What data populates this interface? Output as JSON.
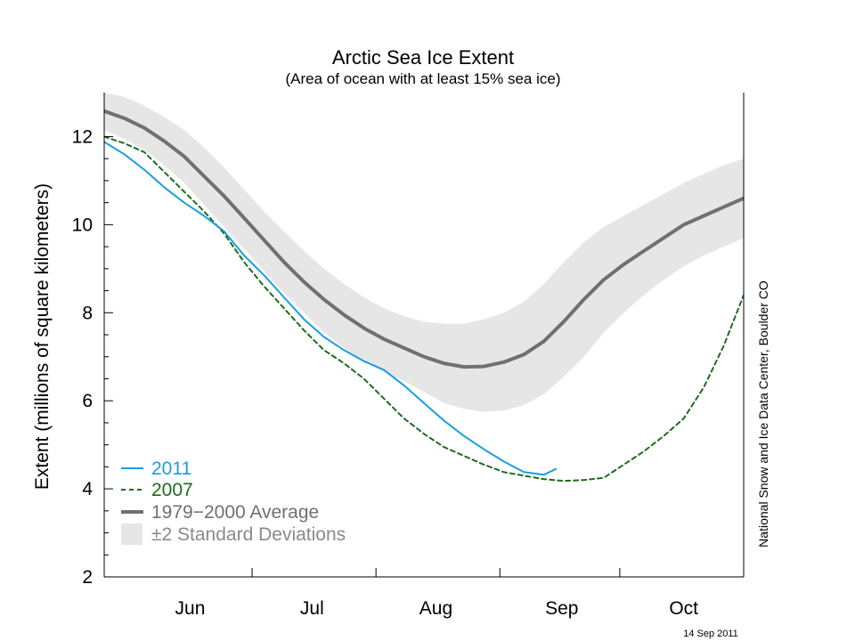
{
  "chart_data": {
    "type": "line",
    "title": "Arctic Sea Ice Extent",
    "subtitle": "(Area of ocean with at least 15% sea ice)",
    "ylabel": "Extent (millions of square kilometers)",
    "xlabel": "",
    "ylim": [
      2,
      13
    ],
    "yticks": [
      "2",
      "4",
      "6",
      "8",
      "10",
      "12"
    ],
    "x_unit": "day-of-year",
    "xlim": [
      145,
      305
    ],
    "month_labels": [
      {
        "label": "Jun",
        "day": 166.5
      },
      {
        "label": "Jul",
        "day": 197
      },
      {
        "label": "Aug",
        "day": 228
      },
      {
        "label": "Sep",
        "day": 259.5
      },
      {
        "label": "Oct",
        "day": 290
      }
    ],
    "month_boundaries": [
      182,
      213,
      244,
      274
    ],
    "grid": false,
    "legend_position": "bottom-left",
    "series": [
      {
        "name": "2011",
        "key": "s2011",
        "color": "#1a9ee0",
        "style": "solid",
        "x": [
          145,
          150,
          155,
          160,
          165,
          170,
          175,
          180,
          185,
          190,
          195,
          200,
          205,
          210,
          215,
          220,
          225,
          230,
          235,
          240,
          245,
          250,
          255,
          258
        ],
        "y": [
          11.88,
          11.6,
          11.25,
          10.85,
          10.5,
          10.2,
          9.85,
          9.3,
          8.85,
          8.35,
          7.85,
          7.45,
          7.15,
          6.9,
          6.7,
          6.35,
          5.95,
          5.55,
          5.2,
          4.9,
          4.62,
          4.38,
          4.32,
          4.45
        ]
      },
      {
        "name": "2007",
        "key": "s2007",
        "color": "#1e6b1e",
        "style": "dashed",
        "x": [
          145,
          150,
          155,
          160,
          165,
          170,
          175,
          180,
          185,
          190,
          195,
          200,
          205,
          210,
          215,
          220,
          225,
          230,
          235,
          240,
          245,
          250,
          255,
          260,
          265,
          270,
          275,
          280,
          285,
          290,
          295,
          300,
          305
        ],
        "y": [
          12.0,
          11.85,
          11.65,
          11.2,
          10.75,
          10.3,
          9.8,
          9.15,
          8.6,
          8.1,
          7.6,
          7.15,
          6.85,
          6.5,
          6.05,
          5.6,
          5.25,
          4.95,
          4.75,
          4.55,
          4.38,
          4.3,
          4.22,
          4.18,
          4.2,
          4.25,
          4.55,
          4.85,
          5.2,
          5.6,
          6.3,
          7.25,
          8.4
        ]
      },
      {
        "name": "1979−2000 Average",
        "key": "avg",
        "color": "#707070",
        "style": "solid-thick",
        "x": [
          145,
          150,
          155,
          160,
          165,
          170,
          175,
          180,
          185,
          190,
          195,
          200,
          205,
          210,
          215,
          220,
          225,
          230,
          235,
          240,
          245,
          250,
          255,
          260,
          265,
          270,
          275,
          280,
          285,
          290,
          295,
          300,
          305
        ],
        "y": [
          12.58,
          12.42,
          12.2,
          11.9,
          11.55,
          11.1,
          10.65,
          10.15,
          9.65,
          9.15,
          8.7,
          8.3,
          7.95,
          7.65,
          7.4,
          7.2,
          7.0,
          6.85,
          6.77,
          6.78,
          6.88,
          7.05,
          7.35,
          7.8,
          8.3,
          8.75,
          9.1,
          9.4,
          9.7,
          10.0,
          10.2,
          10.4,
          10.6
        ]
      }
    ],
    "band": {
      "name": "±2 Standard Deviations",
      "color": "#e6e6e6",
      "x": [
        145,
        150,
        155,
        160,
        165,
        170,
        175,
        180,
        185,
        190,
        195,
        200,
        205,
        210,
        215,
        220,
        225,
        230,
        235,
        240,
        245,
        250,
        255,
        260,
        265,
        270,
        275,
        280,
        285,
        290,
        295,
        300,
        305
      ],
      "upper": [
        13.0,
        12.9,
        12.7,
        12.45,
        12.15,
        11.75,
        11.3,
        10.8,
        10.3,
        9.85,
        9.4,
        9.0,
        8.65,
        8.35,
        8.1,
        7.92,
        7.8,
        7.75,
        7.75,
        7.85,
        8.0,
        8.25,
        8.65,
        9.15,
        9.6,
        9.95,
        10.2,
        10.45,
        10.7,
        10.95,
        11.15,
        11.35,
        11.5
      ],
      "lower": [
        12.15,
        11.95,
        11.7,
        11.35,
        10.95,
        10.45,
        9.95,
        9.45,
        8.95,
        8.45,
        8.0,
        7.55,
        7.2,
        6.9,
        6.65,
        6.45,
        6.2,
        5.95,
        5.82,
        5.75,
        5.78,
        5.9,
        6.15,
        6.55,
        7.0,
        7.55,
        8.0,
        8.4,
        8.75,
        9.05,
        9.3,
        9.5,
        9.7
      ]
    }
  },
  "credit": "National Snow and Ice Data Center, Boulder CO",
  "date_stamp": "14 Sep 2011"
}
